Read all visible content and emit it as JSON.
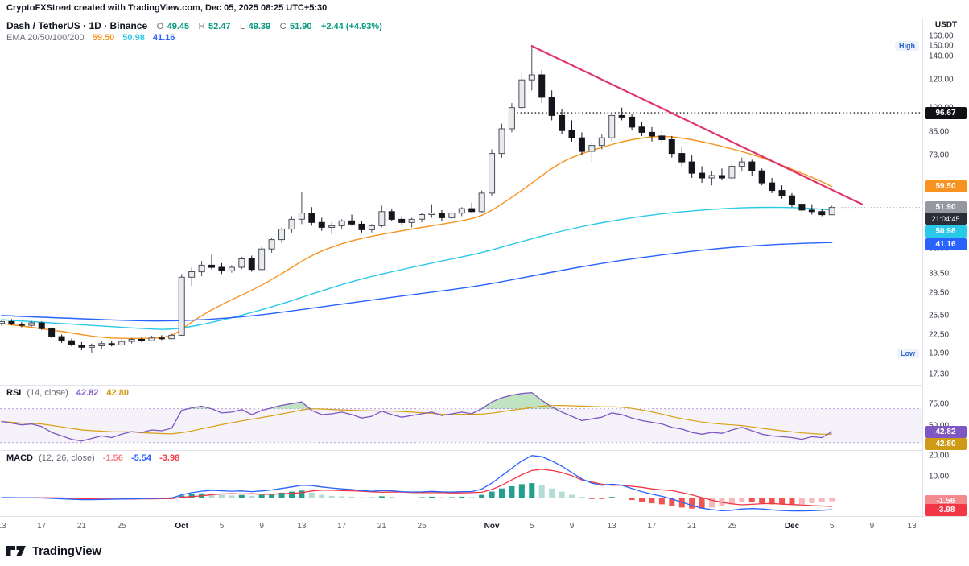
{
  "top_bar": {
    "text": "CryptoFXStreet created with TradingView.com, Dec 05, 2025 08:25 UTC+5:30"
  },
  "legend": {
    "symbol": "Dash / TetherUS · 1D · Binance",
    "ohlc": {
      "o_label": "O",
      "o": "49.45",
      "h_label": "H",
      "h": "52.47",
      "l_label": "L",
      "l": "49.39",
      "c_label": "C",
      "c": "51.90",
      "change": "+2.44 (+4.93%)"
    },
    "ema": {
      "title": "EMA 20/50/100/200",
      "v20": "59.50",
      "v50": "50.98",
      "v100": "41.16"
    }
  },
  "rsi_legend": {
    "title": "RSI",
    "params": "(14, close)",
    "v1": "42.82",
    "v2": "42.80"
  },
  "macd_legend": {
    "title": "MACD",
    "params": "(12, 26, close)",
    "v_hist": "-1.56",
    "v_macd": "-5.54",
    "v_signal": "-3.98"
  },
  "footer": {
    "brand": "TradingView"
  },
  "chart_data": {
    "type": "candlestick",
    "title": "Dash / TetherUS",
    "interval": "1D",
    "exchange": "Binance",
    "price_axis": {
      "scale": "log",
      "min": 16.25,
      "max": 180.6,
      "currency": "USDT",
      "ticks": [
        160,
        150,
        140,
        120,
        100,
        85,
        73,
        39.5,
        33.5,
        29.5,
        25.5,
        22.5,
        19.9,
        17.3
      ]
    },
    "x_axis": {
      "slots": 92,
      "labels": [
        {
          "t": "13",
          "i": 0
        },
        {
          "t": "17",
          "i": 4
        },
        {
          "t": "21",
          "i": 8
        },
        {
          "t": "25",
          "i": 12
        },
        {
          "t": "Oct",
          "i": 18,
          "m": true
        },
        {
          "t": "5",
          "i": 22
        },
        {
          "t": "9",
          "i": 26
        },
        {
          "t": "13",
          "i": 30
        },
        {
          "t": "17",
          "i": 34
        },
        {
          "t": "21",
          "i": 38
        },
        {
          "t": "25",
          "i": 42
        },
        {
          "t": "Nov",
          "i": 49,
          "m": true
        },
        {
          "t": "5",
          "i": 53
        },
        {
          "t": "9",
          "i": 57
        },
        {
          "t": "13",
          "i": 61
        },
        {
          "t": "17",
          "i": 65
        },
        {
          "t": "21",
          "i": 69
        },
        {
          "t": "25",
          "i": 73
        },
        {
          "t": "Dec",
          "i": 79,
          "m": true
        },
        {
          "t": "5",
          "i": 83
        },
        {
          "t": "9",
          "i": 87
        },
        {
          "t": "13",
          "i": 91
        }
      ]
    },
    "candles": [
      [
        24.2,
        24.8,
        23.8,
        24.5
      ],
      [
        24.5,
        24.9,
        23.9,
        24.1
      ],
      [
        24.1,
        24.4,
        23.6,
        23.9
      ],
      [
        23.9,
        24.6,
        23.7,
        24.3
      ],
      [
        24.3,
        24.5,
        23.2,
        23.4
      ],
      [
        23.4,
        23.6,
        22.0,
        22.2
      ],
      [
        22.2,
        22.5,
        21.3,
        21.6
      ],
      [
        21.6,
        21.9,
        20.8,
        21.0
      ],
      [
        21.0,
        21.4,
        20.3,
        20.7
      ],
      [
        20.7,
        21.2,
        19.9,
        20.9
      ],
      [
        20.9,
        21.5,
        20.5,
        21.2
      ],
      [
        21.2,
        21.6,
        20.8,
        21.0
      ],
      [
        21.0,
        21.8,
        20.9,
        21.5
      ],
      [
        21.5,
        22.0,
        21.2,
        21.8
      ],
      [
        21.8,
        22.1,
        21.4,
        21.6
      ],
      [
        21.6,
        22.3,
        21.5,
        22.0
      ],
      [
        22.0,
        22.4,
        21.7,
        21.9
      ],
      [
        21.9,
        22.6,
        21.8,
        22.4
      ],
      [
        22.4,
        33.5,
        22.3,
        32.8
      ],
      [
        32.8,
        35.0,
        31.0,
        34.0
      ],
      [
        34.0,
        36.5,
        33.0,
        35.5
      ],
      [
        35.5,
        38.0,
        34.5,
        35.0
      ],
      [
        35.0,
        36.0,
        33.5,
        34.2
      ],
      [
        34.2,
        35.5,
        33.8,
        35.0
      ],
      [
        35.0,
        37.5,
        34.6,
        37.0
      ],
      [
        37.0,
        37.8,
        34.0,
        34.5
      ],
      [
        34.5,
        40.0,
        34.3,
        39.5
      ],
      [
        39.5,
        42.5,
        38.5,
        42.0
      ],
      [
        42.0,
        45.5,
        41.0,
        45.0
      ],
      [
        45.0,
        49.0,
        44.0,
        48.0
      ],
      [
        48.0,
        57.5,
        46.5,
        50.0
      ],
      [
        50.0,
        52.0,
        46.0,
        47.0
      ],
      [
        47.0,
        48.5,
        44.5,
        45.5
      ],
      [
        45.5,
        47.0,
        43.5,
        46.0
      ],
      [
        46.0,
        48.0,
        45.0,
        47.5
      ],
      [
        47.5,
        49.5,
        46.0,
        46.5
      ],
      [
        46.5,
        47.5,
        44.0,
        44.8
      ],
      [
        44.8,
        46.5,
        44.0,
        46.0
      ],
      [
        46.0,
        52.5,
        45.5,
        50.5
      ],
      [
        50.5,
        51.5,
        47.5,
        48.0
      ],
      [
        48.0,
        49.0,
        46.0,
        47.0
      ],
      [
        47.0,
        48.5,
        45.5,
        48.0
      ],
      [
        48.0,
        50.0,
        47.0,
        49.5
      ],
      [
        49.5,
        53.0,
        48.5,
        50.0
      ],
      [
        50.0,
        51.0,
        47.5,
        48.5
      ],
      [
        48.5,
        50.5,
        48.0,
        50.0
      ],
      [
        50.0,
        52.0,
        49.0,
        51.5
      ],
      [
        51.5,
        53.5,
        50.0,
        50.5
      ],
      [
        50.5,
        58.0,
        50.0,
        57.0
      ],
      [
        57.0,
        76.0,
        56.0,
        74.0
      ],
      [
        74.0,
        90.0,
        72.0,
        87.0
      ],
      [
        87.0,
        103.0,
        85.0,
        100.0
      ],
      [
        100.0,
        126.0,
        98.0,
        120.0
      ],
      [
        120.0,
        150.0,
        112.0,
        124.0
      ],
      [
        124.0,
        128.0,
        103.0,
        107.0
      ],
      [
        107.0,
        112.0,
        92.0,
        95.0
      ],
      [
        95.0,
        99.0,
        84.0,
        86.0
      ],
      [
        86.0,
        92.0,
        80.0,
        82.0
      ],
      [
        82.0,
        85.0,
        73.0,
        75.0
      ],
      [
        75.0,
        80.0,
        70.0,
        78.0
      ],
      [
        78.0,
        84.0,
        76.0,
        82.0
      ],
      [
        82.0,
        97.0,
        80.0,
        95.0
      ],
      [
        95.0,
        100.0,
        92.0,
        94.0
      ],
      [
        94.0,
        96.0,
        86.0,
        88.0
      ],
      [
        88.0,
        91.0,
        83.0,
        85.0
      ],
      [
        85.0,
        88.0,
        80.0,
        83.0
      ],
      [
        83.0,
        86.0,
        79.0,
        81.0
      ],
      [
        81.0,
        83.0,
        72.0,
        74.0
      ],
      [
        74.0,
        77.0,
        68.0,
        70.0
      ],
      [
        70.0,
        73.0,
        63.0,
        65.0
      ],
      [
        65.0,
        68.0,
        61.0,
        63.0
      ],
      [
        63.0,
        66.0,
        60.0,
        64.0
      ],
      [
        64.0,
        67.0,
        62.0,
        63.0
      ],
      [
        63.0,
        70.0,
        62.0,
        68.0
      ],
      [
        68.0,
        72.0,
        66.0,
        70.0
      ],
      [
        70.0,
        71.0,
        64.0,
        66.0
      ],
      [
        66.0,
        67.0,
        60.0,
        61.0
      ],
      [
        61.0,
        63.0,
        57.0,
        58.0
      ],
      [
        58.0,
        60.0,
        55.0,
        56.0
      ],
      [
        56.0,
        57.0,
        52.0,
        53.0
      ],
      [
        53.0,
        54.0,
        50.0,
        51.0
      ],
      [
        51.0,
        53.0,
        49.5,
        50.5
      ],
      [
        50.5,
        51.5,
        49.0,
        49.5
      ],
      [
        49.45,
        52.47,
        49.39,
        51.9
      ]
    ],
    "overlays": {
      "emas": [
        {
          "period": 20,
          "label": "59.50",
          "value": 59.5,
          "color": "#f79421",
          "points": [
            [
              0,
              24.2
            ],
            [
              6,
              23.0
            ],
            [
              10,
              22.0
            ],
            [
              14,
              21.9
            ],
            [
              17,
              22.1
            ],
            [
              19,
              24.5
            ],
            [
              22,
              27.5
            ],
            [
              25,
              30.0
            ],
            [
              28,
              33.5
            ],
            [
              31,
              38.0
            ],
            [
              34,
              41.0
            ],
            [
              37,
              43.0
            ],
            [
              40,
              44.5
            ],
            [
              43,
              46.0
            ],
            [
              46,
              47.5
            ],
            [
              48,
              49.0
            ],
            [
              50,
              53.0
            ],
            [
              52,
              58.0
            ],
            [
              54,
              64.0
            ],
            [
              56,
              70.0
            ],
            [
              58,
              74.0
            ],
            [
              60,
              77.0
            ],
            [
              62,
              80.0
            ],
            [
              64,
              82.0
            ],
            [
              66,
              83.0
            ],
            [
              68,
              82.0
            ],
            [
              70,
              80.0
            ],
            [
              72,
              77.5
            ],
            [
              74,
              75.0
            ],
            [
              76,
              72.0
            ],
            [
              78,
              68.5
            ],
            [
              80,
              65.0
            ],
            [
              82,
              61.5
            ],
            [
              83,
              59.5
            ]
          ]
        },
        {
          "period": 50,
          "label": "50.98",
          "value": 50.98,
          "color": "#2bc9e8",
          "points": [
            [
              0,
              24.8
            ],
            [
              8,
              24.0
            ],
            [
              14,
              23.4
            ],
            [
              17,
              23.2
            ],
            [
              20,
              24.0
            ],
            [
              24,
              25.5
            ],
            [
              28,
              27.5
            ],
            [
              32,
              30.0
            ],
            [
              36,
              32.5
            ],
            [
              40,
              34.5
            ],
            [
              44,
              36.5
            ],
            [
              48,
              38.5
            ],
            [
              52,
              41.5
            ],
            [
              56,
              44.5
            ],
            [
              60,
              47.0
            ],
            [
              64,
              49.0
            ],
            [
              68,
              50.5
            ],
            [
              72,
              51.5
            ],
            [
              76,
              52.0
            ],
            [
              80,
              51.8
            ],
            [
              83,
              51.0
            ]
          ]
        },
        {
          "period": 100,
          "label": "41.16",
          "value": 41.16,
          "color": "#2962ff",
          "points": [
            [
              0,
              25.5
            ],
            [
              10,
              24.8
            ],
            [
              17,
              24.5
            ],
            [
              24,
              25.2
            ],
            [
              30,
              26.5
            ],
            [
              36,
              28.0
            ],
            [
              42,
              29.5
            ],
            [
              48,
              31.0
            ],
            [
              54,
              33.5
            ],
            [
              60,
              36.0
            ],
            [
              66,
              38.0
            ],
            [
              72,
              39.8
            ],
            [
              78,
              40.8
            ],
            [
              83,
              41.2
            ]
          ]
        }
      ],
      "trendline": {
        "from_i": 53,
        "from_p": 150,
        "to_i": 86,
        "to_p": 53
      },
      "level": {
        "price": 96.67,
        "label": "96.67",
        "from_i": 51.5
      },
      "markers": {
        "high": {
          "label": "High",
          "price": 150
        },
        "low": {
          "label": "Low",
          "price": 19.9
        }
      },
      "last_price": {
        "price": 51.9,
        "label": "51.90",
        "countdown": "21:04:45"
      }
    },
    "rsi": {
      "range": [
        22.2,
        97.2
      ],
      "ticks": [
        75,
        50
      ],
      "bands": [
        70,
        30
      ],
      "ma_period": 14,
      "values": [
        55,
        53,
        51,
        52,
        49,
        42,
        38,
        34,
        32,
        35,
        38,
        36,
        40,
        43,
        42,
        45,
        44,
        47,
        68,
        71,
        73,
        70,
        65,
        66,
        69,
        63,
        68,
        71,
        74,
        76,
        78,
        68,
        63,
        64,
        66,
        63,
        59,
        61,
        67,
        63,
        60,
        62,
        64,
        66,
        62,
        64,
        66,
        64,
        70,
        78,
        83,
        86,
        88,
        89,
        80,
        72,
        66,
        61,
        56,
        58,
        60,
        65,
        63,
        59,
        56,
        54,
        52,
        48,
        46,
        42,
        40,
        42,
        41,
        45,
        48,
        44,
        40,
        38,
        37,
        36,
        34,
        37,
        36,
        42.8
      ],
      "badges": [
        {
          "label": "42.82",
          "value": 42.82,
          "color": "#7e57c2"
        },
        {
          "label": "42.80",
          "value": 42.8,
          "color": "#cf9b16"
        }
      ]
    },
    "macd": {
      "range": [
        -8.15,
        22.2
      ],
      "ticks": [
        20,
        10
      ],
      "macd": [
        0.2,
        0.2,
        0.1,
        0.1,
        0.0,
        -0.2,
        -0.4,
        -0.6,
        -0.8,
        -0.8,
        -0.7,
        -0.6,
        -0.5,
        -0.4,
        -0.3,
        -0.2,
        -0.1,
        0.0,
        1.5,
        2.5,
        3.2,
        3.6,
        3.4,
        3.2,
        3.3,
        3.0,
        3.3,
        3.8,
        4.5,
        5.2,
        6.0,
        5.8,
        5.2,
        4.7,
        4.3,
        4.0,
        3.5,
        3.2,
        3.5,
        3.4,
        3.0,
        2.8,
        2.9,
        3.1,
        2.9,
        2.8,
        3.0,
        3.0,
        4.2,
        7.0,
        10.5,
        14.0,
        17.5,
        20.0,
        19.5,
        17.5,
        15.0,
        12.0,
        9.0,
        7.0,
        6.0,
        6.5,
        6.0,
        4.5,
        3.0,
        1.8,
        0.8,
        -0.5,
        -2.0,
        -3.5,
        -4.8,
        -5.5,
        -6.0,
        -5.8,
        -5.2,
        -5.0,
        -5.2,
        -5.6,
        -5.9,
        -6.1,
        -6.1,
        -6.0,
        -5.8,
        -5.54
      ],
      "hist": [
        0.1,
        0.1,
        0.0,
        0.0,
        -0.1,
        -0.3,
        -0.4,
        -0.5,
        -0.5,
        -0.4,
        -0.2,
        -0.1,
        0.0,
        0.1,
        0.1,
        0.2,
        0.2,
        0.3,
        1.2,
        1.8,
        2.2,
        2.0,
        1.5,
        1.2,
        1.4,
        1.0,
        1.5,
        2.0,
        2.5,
        3.0,
        3.5,
        2.5,
        1.5,
        1.0,
        0.8,
        0.6,
        0.3,
        0.3,
        0.8,
        0.6,
        0.2,
        0.2,
        0.4,
        0.6,
        0.4,
        0.4,
        0.6,
        0.5,
        1.5,
        3.0,
        4.5,
        5.5,
        6.5,
        7.0,
        6.0,
        4.5,
        3.0,
        1.5,
        0.5,
        -0.5,
        -0.5,
        0.5,
        0.0,
        -1.0,
        -2.0,
        -2.5,
        -3.0,
        -4.0,
        -4.5,
        -5.0,
        -5.0,
        -4.5,
        -4.0,
        -3.0,
        -2.0,
        -2.0,
        -2.5,
        -3.0,
        -3.0,
        -3.0,
        -2.8,
        -2.4,
        -2.0,
        -1.56
      ],
      "badges": [
        {
          "label": "-1.56",
          "value": -1.56,
          "color": "#f48a8d"
        },
        {
          "label": "-3.98",
          "value": -3.98,
          "color": "#f23645"
        }
      ]
    },
    "colors": {
      "positive": "#089981",
      "candle_up_fill": "#e8eaed",
      "candle_up_border": "#4a4e57",
      "candle_down": "#14161c",
      "trendline": "#e0356b",
      "level_line": "#1c1c1c",
      "last_price_line": "#9598a1",
      "rsi_line": "#7e57c2",
      "rsi_ma": "#d9a013",
      "rsi_band_fill": "rgba(126,87,194,0.08)",
      "rsi_band_line": "#9b7bd1",
      "rsi_over_fill": "rgba(76,175,80,0.35)",
      "macd_line": "#2962ff",
      "signal_line": "#f23645",
      "hist_up_strong": "#22a08d",
      "hist_up_weak": "#b3dcd6",
      "hist_down_strong": "#f05452",
      "hist_down_weak": "#f6b8bb",
      "badge_last_bg": "#9598a1",
      "badge_countdown_bg": "#2a2e39",
      "badge_level_bg": "#101114",
      "hist_legend": "#f77c80"
    }
  }
}
